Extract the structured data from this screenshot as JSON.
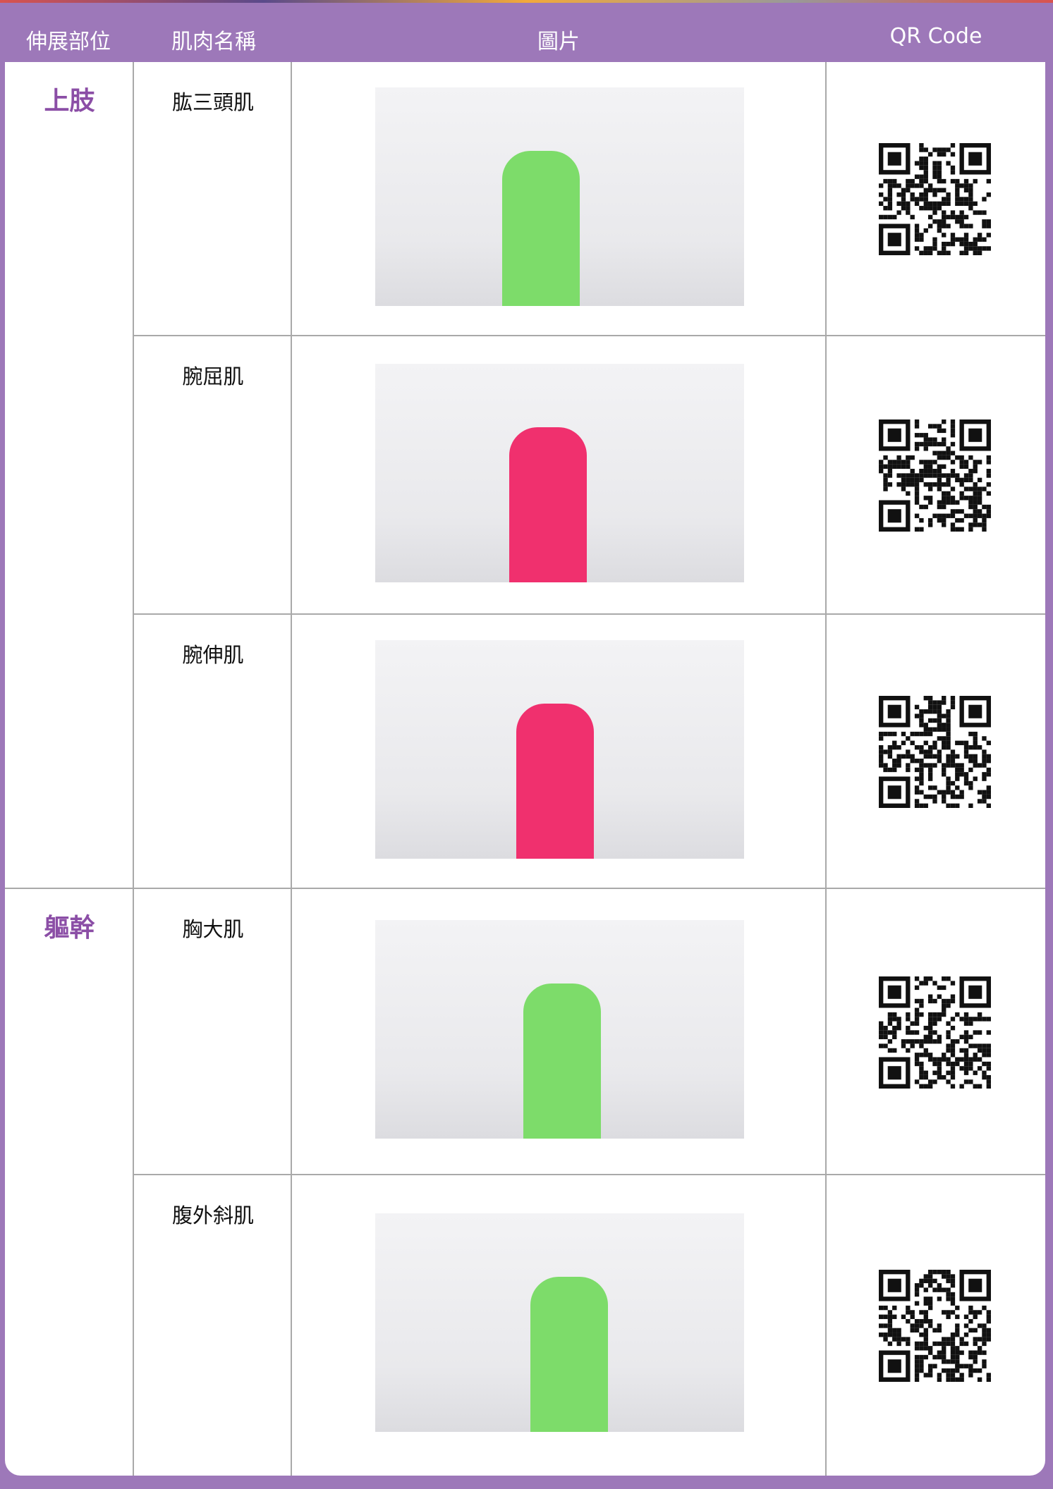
{
  "header": {
    "columns": [
      "伸展部位",
      "肌肉名稱",
      "圖片",
      "QR Code"
    ]
  },
  "table": {
    "groups": [
      {
        "label": "上肢",
        "rows": [
          "肱三頭肌",
          "腕屈肌",
          "腕伸肌"
        ]
      },
      {
        "label": "軀幹",
        "rows": [
          "胸大肌",
          "腹外斜肌"
        ]
      }
    ]
  }
}
